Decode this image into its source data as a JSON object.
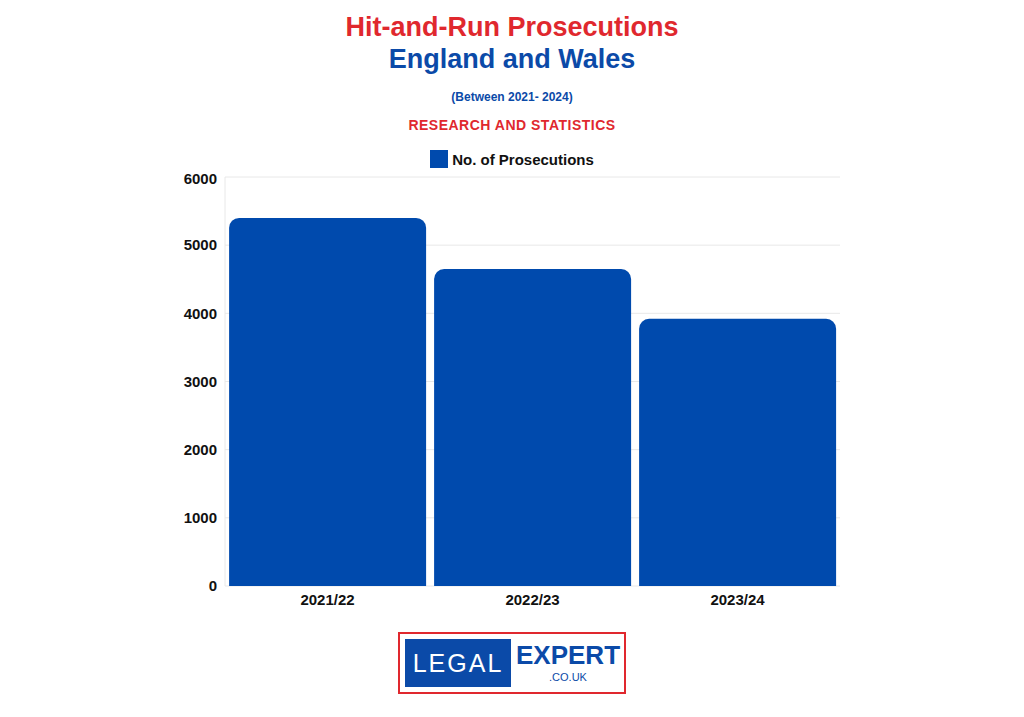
{
  "chart_data": {
    "type": "bar",
    "title": "Hit-and-Run Prosecutions",
    "subtitle": "England and Wales",
    "annotations": [
      "(Between 2021- 2024)",
      "RESEARCH AND STATISTICS",
      "LEGAL",
      "EXPERT",
      ".CO.UK"
    ],
    "categories": [
      "2021/22",
      "2022/23",
      "2023/24"
    ],
    "series": [
      {
        "name": "No. of Prosecutions",
        "color": "#004aad",
        "values": [
          5400,
          4650,
          3920
        ]
      }
    ],
    "ylim": [
      0,
      6000
    ],
    "yticks": [
      0,
      1000,
      2000,
      3000,
      4000,
      5000,
      6000
    ],
    "grid": true,
    "legend": "top"
  }
}
